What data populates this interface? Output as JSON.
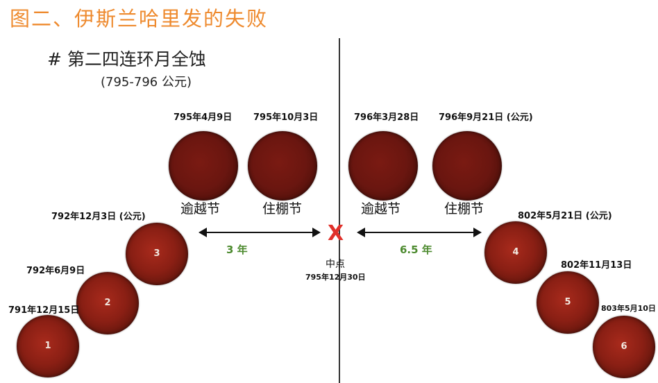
{
  "title": "图二、伊斯兰哈里发的失败",
  "subtitle": "# 第二四连环月全蚀",
  "years": "(795-796 公元)",
  "blood_moons": [
    {
      "num": "1",
      "date": "791年12月15日"
    },
    {
      "num": "2",
      "date": "792年6月9日"
    },
    {
      "num": "3",
      "date": "792年12月3日 (公元)"
    },
    {
      "num": "4",
      "date": "802年5月21日 (公元)"
    },
    {
      "num": "5",
      "date": "802年11月13日"
    },
    {
      "num": "6",
      "date": "803年5月10日"
    }
  ],
  "tetrad": [
    {
      "date": "795年4月9日",
      "feast": "逾越节"
    },
    {
      "date": "795年10月3日",
      "feast": "住棚节"
    },
    {
      "date": "796年3月28日",
      "feast": "逾越节"
    },
    {
      "date": "796年9月21日 (公元)",
      "feast": "住棚节"
    }
  ],
  "left_gap": "3 年",
  "right_gap": "6.5 年",
  "midpoint_label": "中点",
  "midpoint_date": "795年12月30日",
  "marker": "X",
  "colors": {
    "title": "#ee8a2e",
    "gap": "#4c8a2e",
    "marker": "#e0302a",
    "moon": "#8a1f14"
  }
}
